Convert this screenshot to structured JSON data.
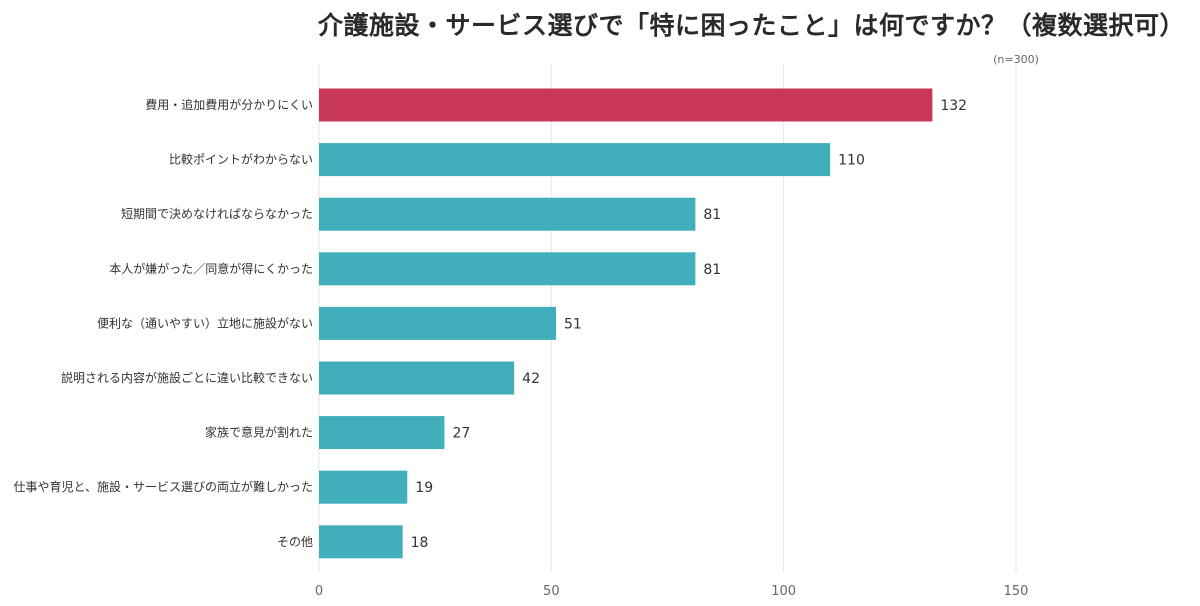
{
  "chart_data": {
    "type": "bar",
    "orientation": "horizontal",
    "title": "介護施設・サービス選びで「特に困ったこと」は何ですか？（複数選択可）",
    "note": "(n=300)",
    "categories": [
      "費用・追加費用が分かりにくい",
      "比較ポイントがわからない",
      "短期間で決めなければならなかった",
      "本人が嫌がった／同意が得にくかった",
      "便利な（通いやすい）立地に施設がない",
      "説明される内容が施設ごとに違い比較できない",
      "家族で意見が割れた",
      "仕事や育児と、施設・サービス選びの両立が難しかった",
      "その他"
    ],
    "values": [
      132,
      110,
      81,
      81,
      51,
      42,
      27,
      19,
      18
    ],
    "xlim": [
      0,
      150
    ],
    "xticks": [
      0,
      50,
      100,
      150
    ],
    "grid": true,
    "highlight_index": 0,
    "colors": {
      "highlight": "#c8375a",
      "bar": "#40aebb"
    }
  }
}
